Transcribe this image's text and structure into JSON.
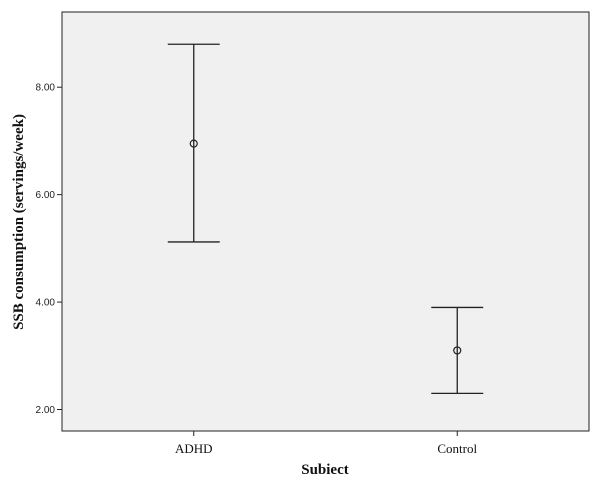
{
  "chart_data": {
    "type": "errorbar",
    "xlabel": "Subiect",
    "ylabel": "SSB consumption (servings/week)",
    "categories": [
      "ADHD",
      "Control"
    ],
    "series": [
      {
        "values": [
          6.95,
          3.1
        ],
        "lower": [
          5.12,
          2.3
        ],
        "upper": [
          8.8,
          3.9
        ]
      }
    ],
    "ylim": [
      1.6,
      9.4
    ],
    "yticks": [
      2.0,
      4.0,
      6.0,
      8.0
    ],
    "ytick_labels": [
      "2.00",
      "4.00",
      "6.00",
      "8.00"
    ],
    "grid": false,
    "plot_background": "#f0f0f0",
    "mark_color": "#222222"
  }
}
